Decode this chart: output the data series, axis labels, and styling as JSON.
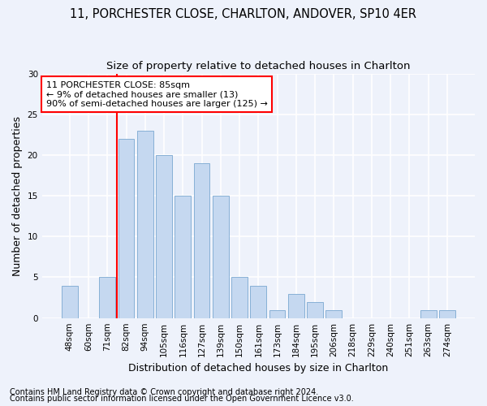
{
  "title1": "11, PORCHESTER CLOSE, CHARLTON, ANDOVER, SP10 4ER",
  "title2": "Size of property relative to detached houses in Charlton",
  "xlabel": "Distribution of detached houses by size in Charlton",
  "ylabel": "Number of detached properties",
  "categories": [
    "48sqm",
    "60sqm",
    "71sqm",
    "82sqm",
    "94sqm",
    "105sqm",
    "116sqm",
    "127sqm",
    "139sqm",
    "150sqm",
    "161sqm",
    "173sqm",
    "184sqm",
    "195sqm",
    "206sqm",
    "218sqm",
    "229sqm",
    "240sqm",
    "251sqm",
    "263sqm",
    "274sqm"
  ],
  "values": [
    4,
    0,
    5,
    22,
    23,
    20,
    15,
    19,
    15,
    5,
    4,
    1,
    3,
    2,
    1,
    0,
    0,
    0,
    0,
    1,
    1
  ],
  "bar_color": "#c5d8f0",
  "bar_edge_color": "#7aa8d0",
  "vline_color": "red",
  "annotation_line1": "11 PORCHESTER CLOSE: 85sqm",
  "annotation_line2": "← 9% of detached houses are smaller (13)",
  "annotation_line3": "90% of semi-detached houses are larger (125) →",
  "annotation_box_color": "white",
  "annotation_box_edge": "red",
  "footer1": "Contains HM Land Registry data © Crown copyright and database right 2024.",
  "footer2": "Contains public sector information licensed under the Open Government Licence v3.0.",
  "ylim": [
    0,
    30
  ],
  "yticks": [
    0,
    5,
    10,
    15,
    20,
    25,
    30
  ],
  "background_color": "#eef2fb",
  "grid_color": "#ffffff",
  "title1_fontsize": 10.5,
  "title2_fontsize": 9.5,
  "ylabel_fontsize": 9,
  "xlabel_fontsize": 9,
  "tick_fontsize": 7.5,
  "annotation_fontsize": 8,
  "footer_fontsize": 7
}
